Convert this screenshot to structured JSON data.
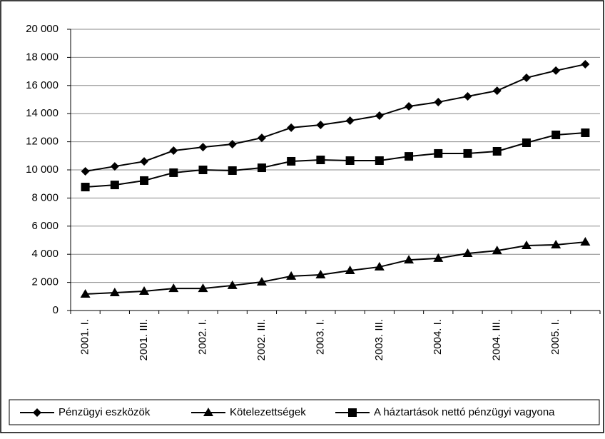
{
  "chart_data": {
    "type": "line",
    "categories": [
      "2001. I.",
      null,
      "2001. III.",
      null,
      "2002. I.",
      null,
      "2002. III.",
      null,
      "2003. I.",
      null,
      "2003. III.",
      null,
      "2004. I.",
      null,
      "2004. III.",
      null,
      "2005. I.",
      null
    ],
    "series": [
      {
        "name": "Pénzügyi eszközök",
        "color": "#000000",
        "marker": "diamond",
        "values": [
          9900,
          10250,
          10600,
          11370,
          11620,
          11830,
          12280,
          13000,
          13200,
          13500,
          13860,
          14520,
          14820,
          15230,
          15630,
          16550,
          17060,
          17510
        ]
      },
      {
        "name": "Kötelezettségek",
        "color": "#000000",
        "marker": "triangle",
        "values": [
          1170,
          1270,
          1370,
          1570,
          1570,
          1780,
          2030,
          2440,
          2540,
          2840,
          3100,
          3600,
          3710,
          4060,
          4260,
          4620,
          4670,
          4870
        ]
      },
      {
        "name": "A háztartások nettó pénzügyi vagyona",
        "color": "#000000",
        "marker": "square",
        "values": [
          8780,
          8930,
          9240,
          9800,
          10000,
          9950,
          10150,
          10610,
          10710,
          10660,
          10660,
          10960,
          11170,
          11170,
          11320,
          11930,
          12490,
          12640
        ]
      }
    ],
    "ylim": [
      0,
      20000
    ],
    "yticks": [
      0,
      {
        "value": 2000,
        "label": "2 000"
      },
      {
        "value": 4000,
        "label": "4 000"
      },
      {
        "value": 6000,
        "label": "6 000"
      },
      {
        "value": 8000,
        "label": "8 000"
      },
      {
        "value": 10000,
        "label": "10 000"
      },
      {
        "value": 12000,
        "label": "12 000"
      },
      {
        "value": 14000,
        "label": "14 000"
      },
      {
        "value": 16000,
        "label": "16 000"
      },
      {
        "value": 18000,
        "label": "18 000"
      },
      {
        "value": 20000,
        "label": "20 000"
      }
    ],
    "grid": true,
    "legend": "bottom"
  }
}
